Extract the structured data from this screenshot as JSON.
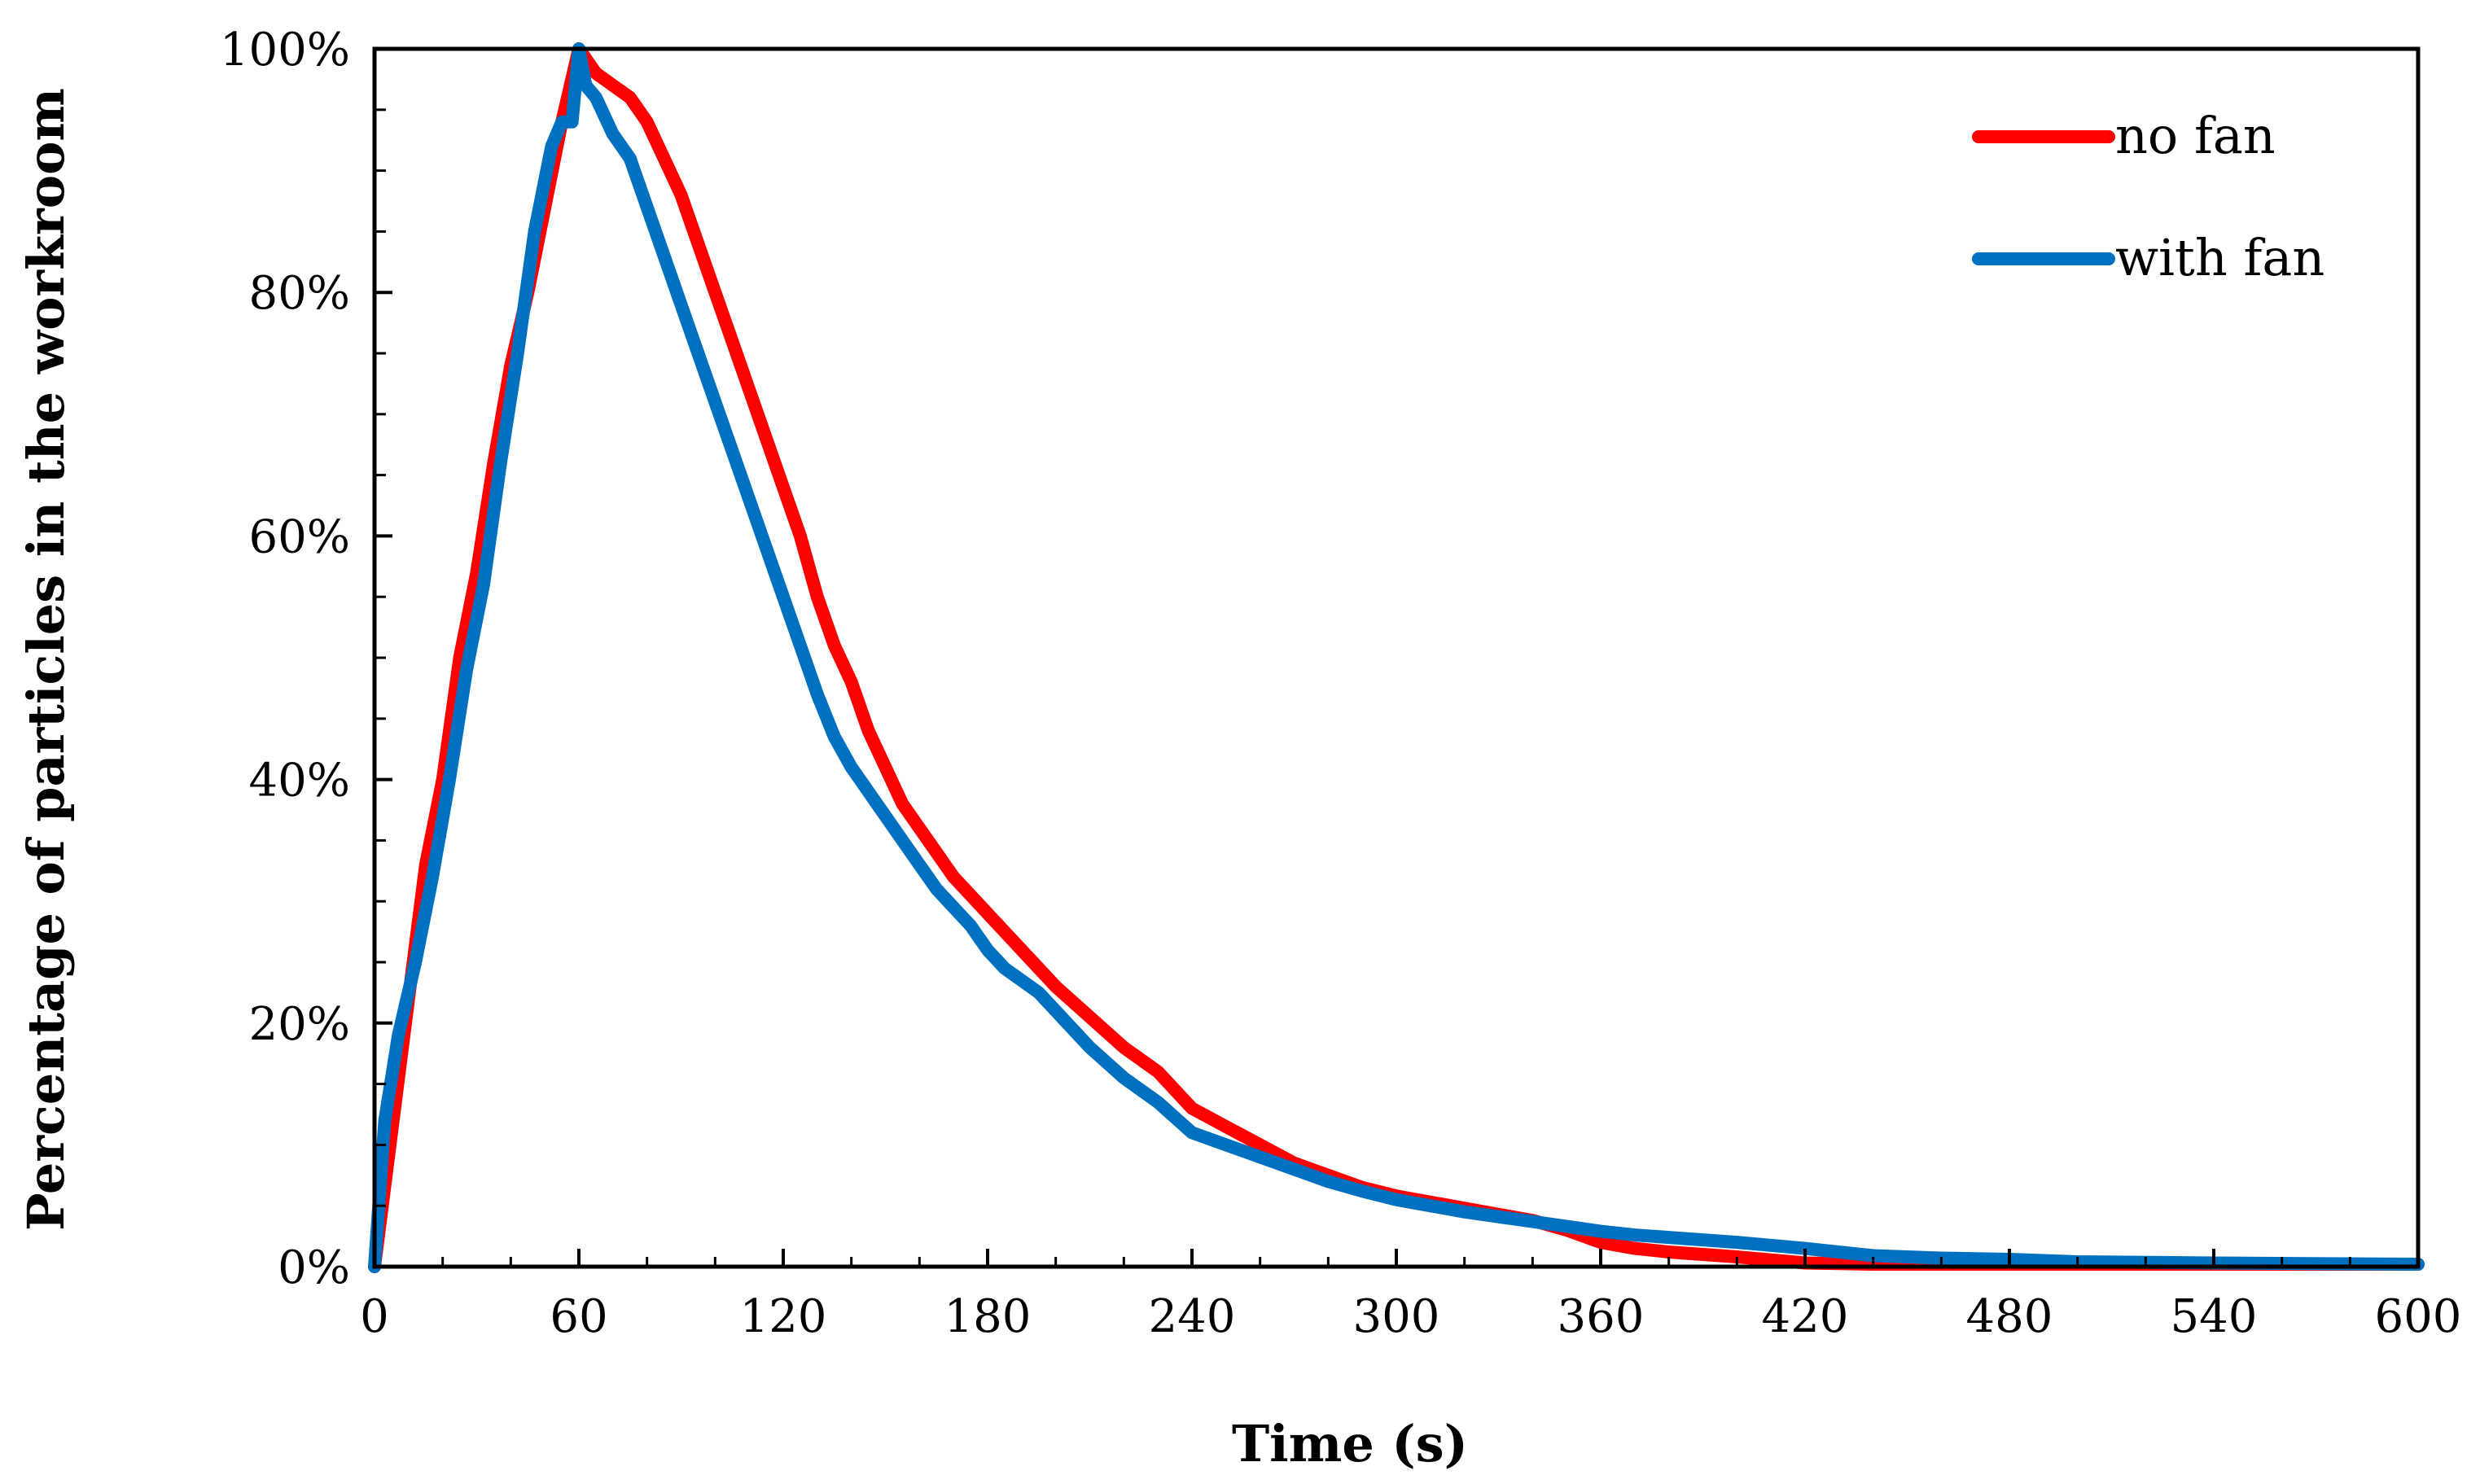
{
  "chart_data": {
    "type": "line",
    "xlabel": "Time (s)",
    "ylabel": "Percentage of particles in the workroom",
    "xlim": [
      0,
      600
    ],
    "ylim": [
      0,
      100
    ],
    "x_ticks": [
      0,
      60,
      120,
      180,
      240,
      300,
      360,
      420,
      480,
      540,
      600
    ],
    "x_tick_labels": [
      "0",
      "60",
      "120",
      "180",
      "240",
      "300",
      "360",
      "420",
      "480",
      "540",
      "600"
    ],
    "y_ticks": [
      0,
      20,
      40,
      60,
      80,
      100
    ],
    "y_tick_labels": [
      "0%",
      "20%",
      "40%",
      "60%",
      "80%",
      "100%"
    ],
    "grid": false,
    "legend_position": "top-right",
    "series": [
      {
        "name": "no fan",
        "color": "#ff0000",
        "x": [
          0,
          5,
          10,
          15,
          20,
          25,
          30,
          35,
          40,
          45,
          50,
          55,
          60,
          65,
          70,
          75,
          80,
          85,
          90,
          95,
          100,
          105,
          110,
          115,
          120,
          125,
          130,
          135,
          140,
          145,
          150,
          155,
          160,
          165,
          170,
          175,
          180,
          185,
          190,
          195,
          200,
          210,
          220,
          230,
          240,
          250,
          260,
          270,
          280,
          290,
          300,
          310,
          320,
          330,
          340,
          350,
          360,
          370,
          380,
          400,
          420,
          440,
          460,
          480,
          500,
          540,
          600
        ],
        "y": [
          0,
          11,
          22,
          33,
          40,
          50,
          57,
          66,
          74,
          80,
          87,
          94,
          100,
          98,
          97,
          96,
          94,
          91,
          88,
          84,
          80,
          76,
          72,
          68,
          64,
          60,
          55,
          51,
          48,
          44,
          41,
          38,
          36,
          34,
          32,
          30.5,
          29,
          27.5,
          26,
          24.5,
          23,
          20.5,
          18,
          16,
          13,
          11.5,
          10,
          8.5,
          7.5,
          6.5,
          5.8,
          5.3,
          4.8,
          4.3,
          3.8,
          3.0,
          2.0,
          1.5,
          1.2,
          0.8,
          0.3,
          0.2,
          0.2,
          0.2,
          0.2,
          0.2,
          0.2
        ]
      },
      {
        "name": "with fan",
        "color": "#0070c0",
        "x": [
          0,
          3,
          7,
          12,
          17,
          22,
          27,
          32,
          37,
          42,
          47,
          52,
          55,
          58,
          60,
          62,
          65,
          70,
          75,
          80,
          85,
          90,
          95,
          100,
          105,
          110,
          115,
          120,
          125,
          130,
          135,
          140,
          145,
          150,
          155,
          160,
          165,
          170,
          175,
          180,
          185,
          190,
          195,
          200,
          210,
          220,
          230,
          240,
          250,
          260,
          270,
          280,
          290,
          300,
          310,
          320,
          330,
          340,
          350,
          360,
          370,
          380,
          400,
          420,
          440,
          460,
          480,
          500,
          540,
          600
        ],
        "y": [
          0,
          12,
          19,
          25,
          32,
          40,
          49,
          56,
          66,
          75,
          85,
          92,
          94,
          94,
          100,
          97,
          96,
          93,
          91,
          87,
          83,
          79,
          75,
          71,
          67,
          63,
          59,
          55,
          51,
          47,
          43.5,
          41,
          39,
          37,
          35,
          33,
          31,
          29.5,
          28,
          26,
          24.5,
          23.5,
          22.5,
          21,
          18,
          15.5,
          13.5,
          11,
          10,
          9,
          8,
          7,
          6.2,
          5.5,
          5,
          4.5,
          4.1,
          3.7,
          3.3,
          2.9,
          2.6,
          2.4,
          2.0,
          1.5,
          0.9,
          0.7,
          0.6,
          0.4,
          0.3,
          0.2
        ]
      }
    ]
  }
}
